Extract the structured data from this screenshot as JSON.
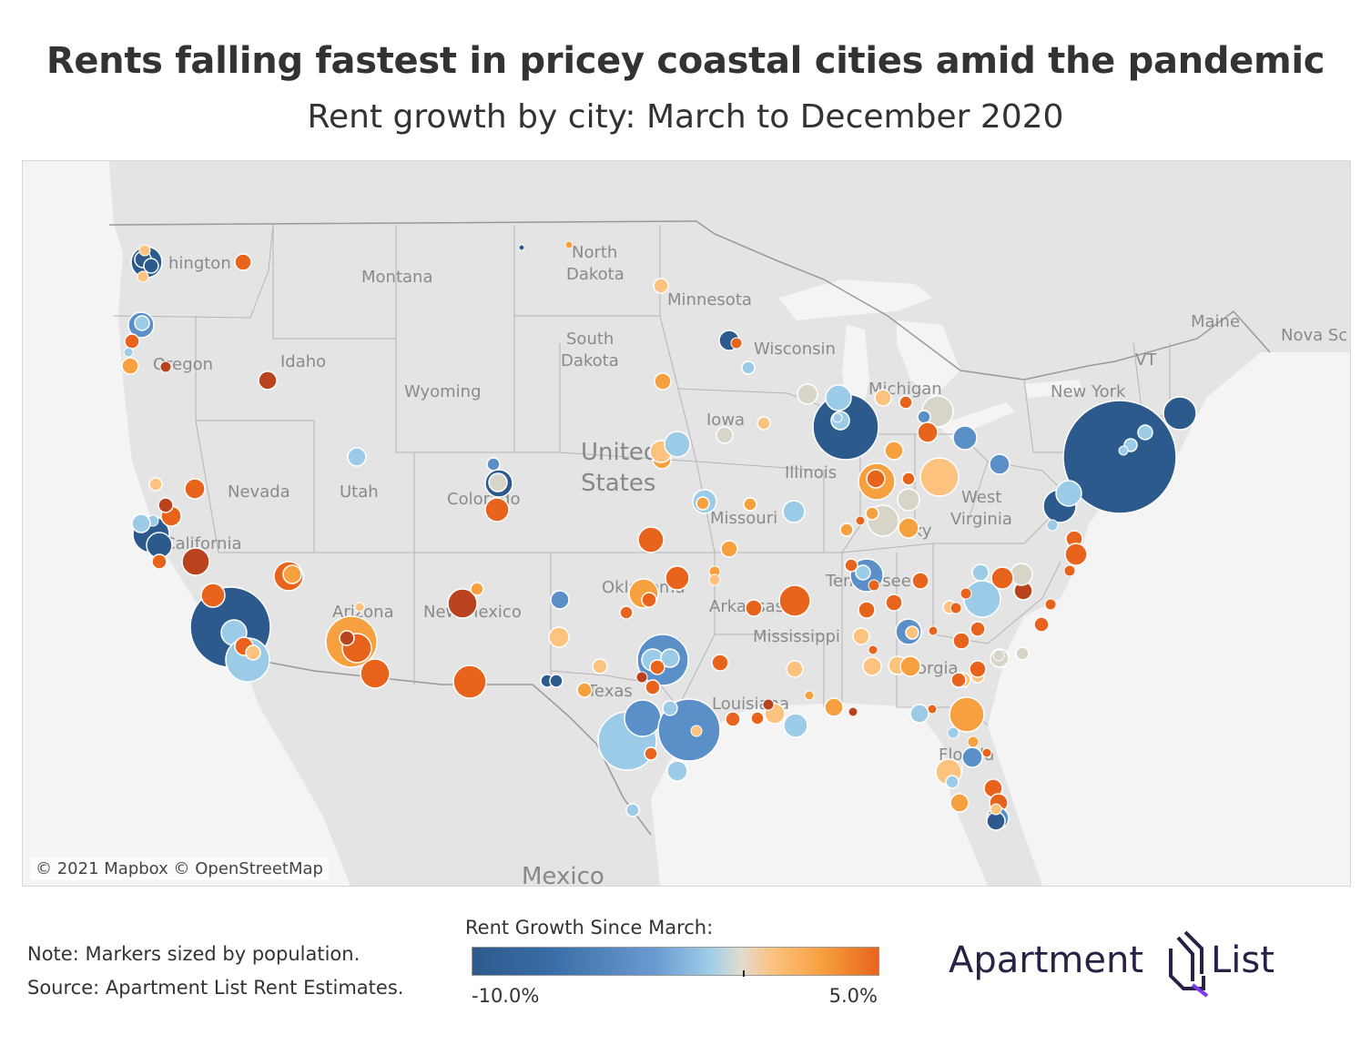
{
  "title": "Rents falling fastest in pricey coastal cities amid the pandemic",
  "subtitle": "Rent growth by city: March to December 2020",
  "map": {
    "attribution": "© 2021 Mapbox © OpenStreetMap",
    "labels": {
      "washington": "hington",
      "montana": "Montana",
      "north_dakota_1": "North",
      "north_dakota_2": "Dakota",
      "minnesota": "Minnesota",
      "south_dakota_1": "South",
      "south_dakota_2": "Dakota",
      "wisconsin": "Wisconsin",
      "maine": "Maine",
      "nova_scotia": "Nova Sc",
      "oregon": "Oregon",
      "idaho": "Idaho",
      "wyoming": "Wyoming",
      "michigan": "Michigan",
      "vermont": "VT",
      "new_york": "New York",
      "iowa": "Iowa",
      "united_states_1": "United",
      "united_states_2": "States",
      "nevada": "Nevada",
      "utah": "Utah",
      "colorado": "Colorado",
      "illinois": "Illinois",
      "west_virginia_1": "West",
      "west_virginia_2": "Virginia",
      "california": "California",
      "missouri": "Missouri",
      "kentucky": "ky",
      "oklahoma": "Oklahoma",
      "tennessee": "Tennessee",
      "arizona": "Arizona",
      "new_mexico": "New Mexico",
      "arkansas": "Arkansas",
      "mississippi": "Mississippi",
      "georgia": "Georgia",
      "texas": "Texas",
      "louisiana": "Louisiana",
      "florida": "Florida",
      "mexico": "Mexico"
    },
    "colors": {
      "dark_blue": "#2c5a8c",
      "mid_blue": "#5b8fc7",
      "light_blue": "#9ccbe8",
      "neutral": "#d9d4c8",
      "light_orange": "#fcc27e",
      "orange": "#f7a040",
      "dark_orange": "#e8641c",
      "red_brown": "#b8431e"
    }
  },
  "note": {
    "line1": "Note: Markers sized by population.",
    "line2": "Source: Apartment List Rent Estimates."
  },
  "legend": {
    "title": "Rent Growth Since March:",
    "min_label": "-10.0%",
    "max_label": "5.0%"
  },
  "logo": {
    "word1": "Apartment",
    "word2": "List"
  }
}
